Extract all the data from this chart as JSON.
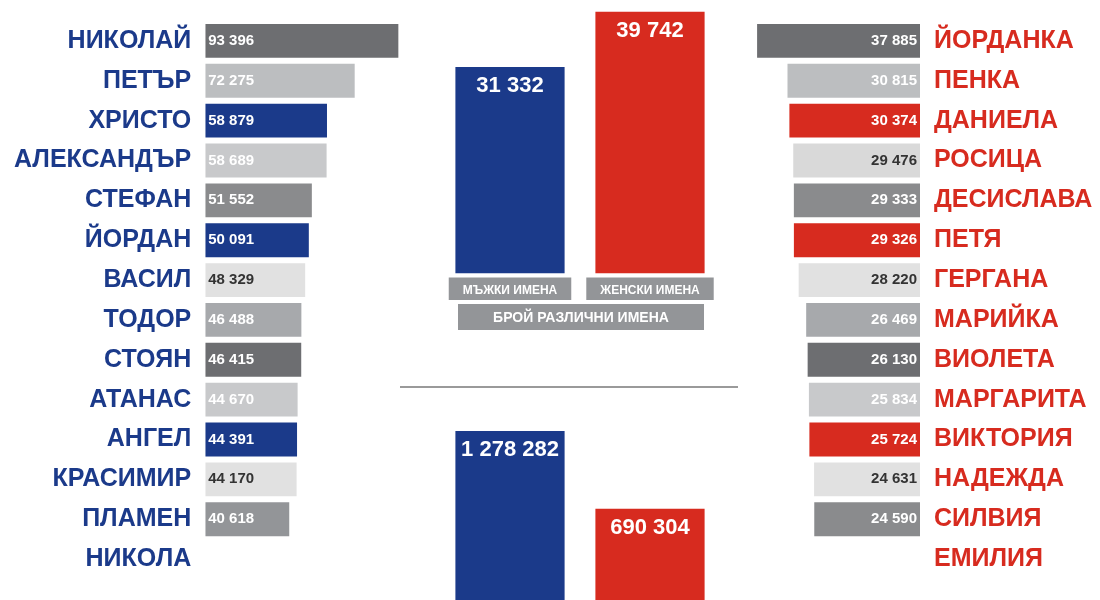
{
  "chart_data": [
    {
      "type": "bar",
      "orientation": "horizontal",
      "tick_labels": "y",
      "categories": [
        "НИКОЛАЙ",
        "ПЕТЪР",
        "ХРИСТО",
        "АЛЕКСАНДЪР",
        "СТЕФАН",
        "ЙОРДАН",
        "ВАСИЛ",
        "ТОДОР",
        "СТОЯН",
        "АТАНАС",
        "АНГЕЛ",
        "КРАСИМИР",
        "ПЛАМЕН",
        "НИКОЛА"
      ],
      "values": [
        93396,
        72275,
        58879,
        58689,
        51552,
        50091,
        48329,
        46488,
        46415,
        44670,
        44391,
        44170,
        40618,
        null
      ],
      "value_labels": [
        "93 396",
        "72 275",
        "58 879",
        "58 689",
        "51 552",
        "50 091",
        "48 329",
        "46 488",
        "46 415",
        "44 670",
        "44 391",
        "44 170",
        "40 618",
        null
      ],
      "colors": [
        "#6d6e71",
        "#bcbec0",
        "#1b3a8a",
        "#c8c9cb",
        "#8a8b8d",
        "#1b3a8a",
        "#e1e1e1",
        "#a7a9ac",
        "#6d6e71",
        "#c8c9cb",
        "#1b3a8a",
        "#e1e1e1",
        "#939598",
        "#1b3a8a"
      ]
    },
    {
      "type": "bar",
      "tick_labels": "x",
      "xlabel": "БРОЙ РАЗЛИЧНИ ИМЕНА",
      "categories": [
        "МЪЖКИ ИМЕНА",
        "ЖЕНСКИ ИМЕНА"
      ],
      "values": [
        31332,
        39742
      ],
      "value_labels": [
        "31 332",
        "39 742"
      ],
      "colors": [
        "#1b3a8a",
        "#d72b1f"
      ]
    },
    {
      "type": "bar",
      "tick_labels": false,
      "categories": [
        null,
        null
      ],
      "values": [
        1278282,
        690304
      ],
      "value_labels": [
        "1 278 282",
        "690 304"
      ],
      "colors": [
        "#1b3a8a",
        "#d72b1f"
      ]
    },
    {
      "type": "bar",
      "orientation": "horizontal",
      "tick_labels": "y",
      "categories": [
        "ЙОРДАНКА",
        "ПЕНКА",
        "ДАНИЕЛА",
        "РОСИЦА",
        "ДЕСИСЛАВА",
        "ПЕТЯ",
        "ГЕРГАНА",
        "МАРИЙКА",
        "ВИОЛЕТА",
        "МАРГАРИТА",
        "ВИКТОРИЯ",
        "НАДЕЖДА",
        "СИЛВИЯ",
        "ЕМИЛИЯ"
      ],
      "values": [
        37885,
        30815,
        30374,
        29476,
        29333,
        29326,
        28220,
        26469,
        26130,
        25834,
        25724,
        24631,
        24590,
        null
      ],
      "value_labels": [
        "37 885",
        "30 815",
        "30 374",
        "29 476",
        "29 333",
        "29 326",
        "28 220",
        "26 469",
        "26 130",
        "25 834",
        "25 724",
        "24 631",
        "24 590",
        null
      ],
      "colors": [
        "#6d6e71",
        "#bcbec0",
        "#d72b1f",
        "#d9d9d9",
        "#8a8b8d",
        "#d72b1f",
        "#e1e1e1",
        "#a7a9ac",
        "#6d6e71",
        "#c8c9cb",
        "#d72b1f",
        "#e1e1e1",
        "#8a8b8d",
        "#d72b1f"
      ]
    }
  ]
}
